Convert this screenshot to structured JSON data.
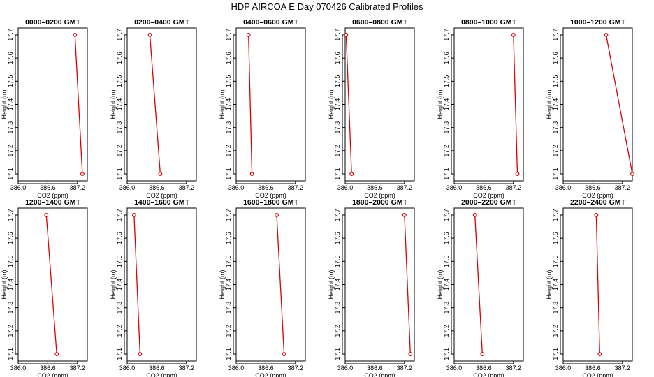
{
  "title": "HDP  AIRCOA E  Day 070426  Calibrated Profiles",
  "colors": {
    "series": "#dd0000",
    "frame": "#000000",
    "background": "#ffffff"
  },
  "chart_data": [
    {
      "type": "line",
      "title": "0000–0200 GMT",
      "xlabel": "CO2 (ppm)",
      "ylabel": "Height (m)",
      "xlim": [
        386.0,
        387.4
      ],
      "ylim": [
        17.07,
        17.73
      ],
      "xticks": [
        "386.0",
        "386.6",
        "387.2"
      ],
      "yticks": [
        "17.1",
        "17.2",
        "17.3",
        "17.4",
        "17.5",
        "17.6",
        "17.7"
      ],
      "grid": false,
      "legend": "none",
      "x": [
        387.15,
        387.3
      ],
      "y": [
        17.7,
        17.1
      ]
    },
    {
      "type": "line",
      "title": "0200–0400 GMT",
      "xlabel": "CO2 (ppm)",
      "ylabel": "Height (m)",
      "xlim": [
        386.0,
        387.4
      ],
      "ylim": [
        17.07,
        17.73
      ],
      "xticks": [
        "386.0",
        "386.6",
        "387.2"
      ],
      "yticks": [
        "17.1",
        "17.2",
        "17.3",
        "17.4",
        "17.5",
        "17.6",
        "17.7"
      ],
      "grid": false,
      "legend": "none",
      "x": [
        386.46,
        386.67
      ],
      "y": [
        17.7,
        17.1
      ]
    },
    {
      "type": "line",
      "title": "0400–0600 GMT",
      "xlabel": "CO2 (ppm)",
      "ylabel": "Height (m)",
      "xlim": [
        386.0,
        387.4
      ],
      "ylim": [
        17.07,
        17.73
      ],
      "xticks": [
        "386.0",
        "386.6",
        "387.2"
      ],
      "yticks": [
        "17.1",
        "17.2",
        "17.3",
        "17.4",
        "17.5",
        "17.6",
        "17.7"
      ],
      "grid": false,
      "legend": "none",
      "x": [
        386.25,
        386.32
      ],
      "y": [
        17.7,
        17.1
      ]
    },
    {
      "type": "line",
      "title": "0600–0800 GMT",
      "xlabel": "CO2 (ppm)",
      "ylabel": "Height (m)",
      "xlim": [
        386.0,
        387.4
      ],
      "ylim": [
        17.07,
        17.73
      ],
      "xticks": [
        "386.0",
        "386.6",
        "387.2"
      ],
      "yticks": [
        "17.1",
        "17.2",
        "17.3",
        "17.4",
        "17.5",
        "17.6",
        "17.7"
      ],
      "grid": false,
      "legend": "none",
      "x": [
        386.02,
        386.13
      ],
      "y": [
        17.7,
        17.1
      ]
    },
    {
      "type": "line",
      "title": "0800–1000 GMT",
      "xlabel": "CO2 (ppm)",
      "ylabel": "Height (m)",
      "xlim": [
        386.0,
        387.4
      ],
      "ylim": [
        17.07,
        17.73
      ],
      "xticks": [
        "386.0",
        "386.6",
        "387.2"
      ],
      "yticks": [
        "17.1",
        "17.2",
        "17.3",
        "17.4",
        "17.5",
        "17.6",
        "17.7"
      ],
      "grid": false,
      "legend": "none",
      "x": [
        387.2,
        387.28
      ],
      "y": [
        17.7,
        17.1
      ]
    },
    {
      "type": "line",
      "title": "1000–1200 GMT",
      "xlabel": "CO2 (ppm)",
      "ylabel": "Height (m)",
      "xlim": [
        386.0,
        387.4
      ],
      "ylim": [
        17.07,
        17.73
      ],
      "xticks": [
        "386.0",
        "386.6",
        "387.2"
      ],
      "yticks": [
        "17.1",
        "17.2",
        "17.3",
        "17.4",
        "17.5",
        "17.6",
        "17.7"
      ],
      "grid": false,
      "legend": "none",
      "x": [
        386.87,
        387.4
      ],
      "y": [
        17.7,
        17.1
      ]
    },
    {
      "type": "line",
      "title": "1200–1400 GMT",
      "xlabel": "CO2 (ppm)",
      "ylabel": "Height (m)",
      "xlim": [
        386.0,
        387.4
      ],
      "ylim": [
        17.07,
        17.73
      ],
      "xticks": [
        "386.0",
        "386.6",
        "387.2"
      ],
      "yticks": [
        "17.1",
        "17.2",
        "17.3",
        "17.4",
        "17.5",
        "17.6",
        "17.7"
      ],
      "grid": false,
      "legend": "none",
      "x": [
        386.57,
        386.78
      ],
      "y": [
        17.7,
        17.1
      ]
    },
    {
      "type": "line",
      "title": "1400–1600 GMT",
      "xlabel": "CO2 (ppm)",
      "ylabel": "Height (m)",
      "xlim": [
        386.0,
        387.4
      ],
      "ylim": [
        17.07,
        17.73
      ],
      "xticks": [
        "386.0",
        "386.6",
        "387.2"
      ],
      "yticks": [
        "17.1",
        "17.2",
        "17.3",
        "17.4",
        "17.5",
        "17.6",
        "17.7"
      ],
      "grid": false,
      "legend": "none",
      "x": [
        386.14,
        386.26
      ],
      "y": [
        17.7,
        17.1
      ]
    },
    {
      "type": "line",
      "title": "1600–1800 GMT",
      "xlabel": "CO2 (ppm)",
      "ylabel": "Height (m)",
      "xlim": [
        386.0,
        387.4
      ],
      "ylim": [
        17.07,
        17.73
      ],
      "xticks": [
        "386.0",
        "386.6",
        "387.2"
      ],
      "yticks": [
        "17.1",
        "17.2",
        "17.3",
        "17.4",
        "17.5",
        "17.6",
        "17.7"
      ],
      "grid": false,
      "legend": "none",
      "x": [
        386.82,
        386.97
      ],
      "y": [
        17.7,
        17.1
      ]
    },
    {
      "type": "line",
      "title": "1800–2000 GMT",
      "xlabel": "CO2 (ppm)",
      "ylabel": "Height (m)",
      "xlim": [
        386.0,
        387.4
      ],
      "ylim": [
        17.07,
        17.73
      ],
      "xticks": [
        "386.0",
        "386.6",
        "387.2"
      ],
      "yticks": [
        "17.1",
        "17.2",
        "17.3",
        "17.4",
        "17.5",
        "17.6",
        "17.7"
      ],
      "grid": false,
      "legend": "none",
      "x": [
        387.2,
        387.32
      ],
      "y": [
        17.7,
        17.1
      ]
    },
    {
      "type": "line",
      "title": "2000–2200 GMT",
      "xlabel": "CO2 (ppm)",
      "ylabel": "Height (m)",
      "xlim": [
        386.0,
        387.4
      ],
      "ylim": [
        17.07,
        17.73
      ],
      "xticks": [
        "386.0",
        "386.6",
        "387.2"
      ],
      "yticks": [
        "17.1",
        "17.2",
        "17.3",
        "17.4",
        "17.5",
        "17.6",
        "17.7"
      ],
      "grid": false,
      "legend": "none",
      "x": [
        386.42,
        386.57
      ],
      "y": [
        17.7,
        17.1
      ]
    },
    {
      "type": "line",
      "title": "2200–2400 GMT",
      "xlabel": "CO2 (ppm)",
      "ylabel": "Height (m)",
      "xlim": [
        386.0,
        387.4
      ],
      "ylim": [
        17.07,
        17.73
      ],
      "xticks": [
        "386.0",
        "386.6",
        "387.2"
      ],
      "yticks": [
        "17.1",
        "17.2",
        "17.3",
        "17.4",
        "17.5",
        "17.6",
        "17.7"
      ],
      "grid": false,
      "legend": "none",
      "x": [
        386.67,
        386.74
      ],
      "y": [
        17.7,
        17.1
      ]
    }
  ]
}
